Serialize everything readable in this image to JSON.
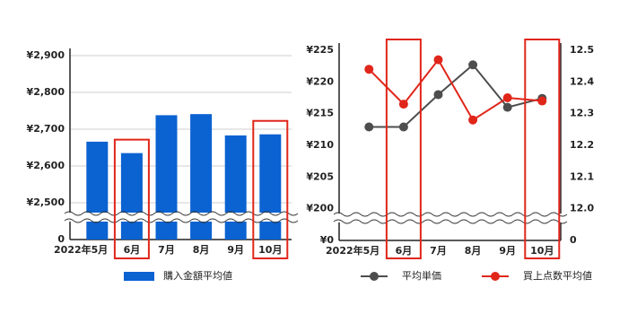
{
  "chart_data": [
    {
      "type": "bar",
      "categories": [
        "2022年5月",
        "6月",
        "7月",
        "8月",
        "9月",
        "10月"
      ],
      "series": [
        {
          "name": "購入金額平均値",
          "color": "#0b62d1",
          "values": [
            2666,
            2635,
            2738,
            2741,
            2683,
            2686
          ]
        }
      ],
      "ylim": [
        2400,
        2900
      ],
      "yticks": [
        0,
        {
          "value": 2500,
          "label": "¥2,500"
        },
        {
          "value": 2600,
          "label": "¥2,600"
        },
        {
          "value": 2700,
          "label": "¥2,700"
        },
        {
          "value": 2800,
          "label": "¥2,800"
        },
        {
          "value": 2900,
          "label": "¥2,900"
        }
      ],
      "grid": true,
      "axis_break": true,
      "highlight_categories": [
        1,
        5
      ],
      "highlight_color": "#e0261a",
      "legend": "bottom"
    },
    {
      "type": "line",
      "categories": [
        "2022年5月",
        "6月",
        "7月",
        "8月",
        "9月",
        "10月"
      ],
      "series": [
        {
          "name": "平均単価",
          "color": "#4d4d4d",
          "values": [
            212.9,
            212.9,
            218.0,
            222.7,
            216.0,
            217.4
          ]
        },
        {
          "name": "買上点数平均値",
          "color": "#e0261a",
          "axis": "y2",
          "values": [
            12.44,
            12.33,
            12.47,
            12.28,
            12.35,
            12.34
          ]
        }
      ],
      "ylim": [
        195,
        225
      ],
      "yticks": [
        {
          "value": 0,
          "label": "¥0"
        },
        {
          "value": 200,
          "label": "¥200"
        },
        {
          "value": 205,
          "label": "¥205"
        },
        {
          "value": 210,
          "label": "¥210"
        },
        {
          "value": 215,
          "label": "¥215"
        },
        {
          "value": 220,
          "label": "¥220"
        },
        {
          "value": 225,
          "label": "¥225"
        }
      ],
      "y2lim": [
        11.9,
        12.5
      ],
      "y2ticks": [
        0,
        {
          "value": 12,
          "label": "12.0"
        },
        {
          "value": 12.1,
          "label": "12.1"
        },
        {
          "value": 12.2,
          "label": "12.2"
        },
        {
          "value": 12.3,
          "label": "12.3"
        },
        {
          "value": 12.4,
          "label": "12.4"
        },
        {
          "value": 12.5,
          "label": "12.5"
        }
      ],
      "grid": false,
      "axis_break": true,
      "highlight_categories": [
        1,
        5
      ],
      "highlight_color": "#e0261a",
      "legend": "bottom"
    }
  ]
}
